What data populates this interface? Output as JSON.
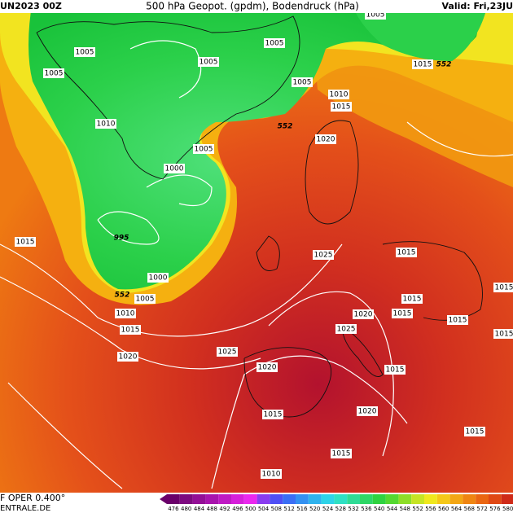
{
  "header": {
    "left": "UN2023 00Z",
    "center": "500 hPa Geopot. (gpdm), Bodendruck (hPa)",
    "right": "Valid: Fri,23JU"
  },
  "footer": {
    "model": "F OPER 0.400°",
    "site": "ENTRALE.DE"
  },
  "legend": {
    "labels": [
      476,
      480,
      484,
      488,
      492,
      496,
      500,
      504,
      508,
      512,
      516,
      520,
      524,
      528,
      532,
      536,
      540,
      544,
      548,
      552,
      556,
      560,
      564,
      568,
      572,
      576,
      580
    ]
  },
  "map": {
    "labels": [
      "1005",
      "1005",
      "1005",
      "1005",
      "1005",
      "1005",
      "1005",
      "1005",
      "1010",
      "1010",
      "1010",
      "1015",
      "1015",
      "1015",
      "1015",
      "1015",
      "1015",
      "1015",
      "1015",
      "1015",
      "1015",
      "1015",
      "1015",
      "1020",
      "1020",
      "1020",
      "1020",
      "1020",
      "1025",
      "1025",
      "1025",
      "1000",
      "1000",
      "995",
      "1010",
      "552",
      "552",
      "552",
      "1015",
      "1015"
    ]
  }
}
